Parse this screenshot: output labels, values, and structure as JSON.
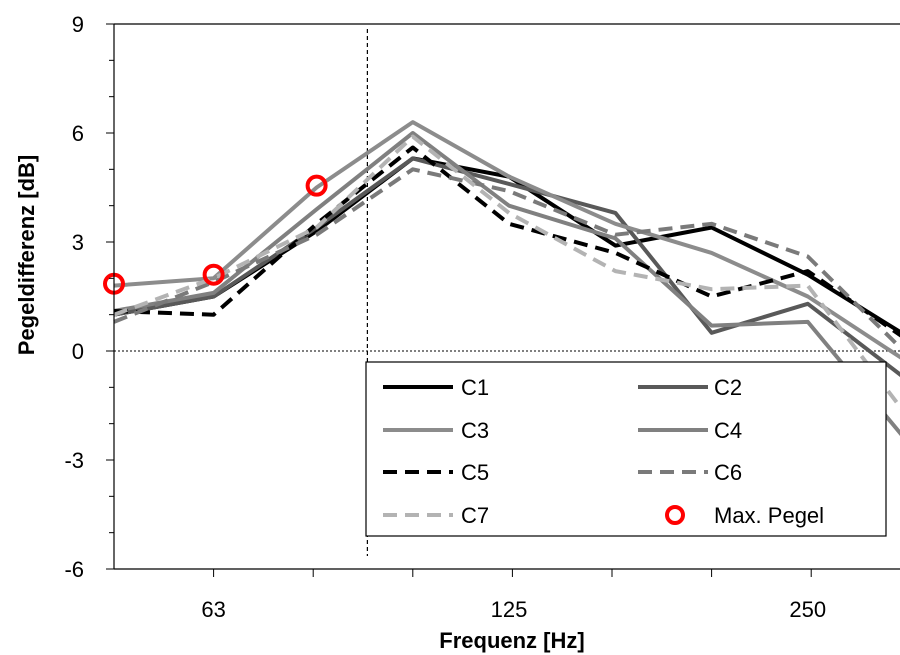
{
  "chart_data": {
    "type": "line",
    "title": "",
    "xlabel": "Frequenz [Hz]",
    "ylabel": "Pegeldifferenz [dB]",
    "x_scale": "log2 (third-octave bands)",
    "x_ticks": [
      {
        "value": 63,
        "label": "63"
      },
      {
        "value": 125,
        "label": "125"
      },
      {
        "value": 250,
        "label": "250"
      }
    ],
    "x_range": [
      50,
      315
    ],
    "x_bands": [
      50,
      63,
      80,
      100,
      125,
      160,
      200,
      250,
      315
    ],
    "marker_line_x": 90,
    "ylim": [
      -6,
      9
    ],
    "y_ticks": [
      {
        "value": 9,
        "label": "9"
      },
      {
        "value": 6,
        "label": "6"
      },
      {
        "value": 3,
        "label": "3"
      },
      {
        "value": 0,
        "label": "0"
      },
      {
        "value": -3,
        "label": "-3"
      },
      {
        "value": -6,
        "label": "-6"
      }
    ],
    "grid": false,
    "legend_position": "bottom-right",
    "series": [
      {
        "name": "C1",
        "color": "#000000",
        "dash": "solid",
        "x": [
          50,
          63,
          80,
          100,
          125,
          160,
          200,
          250,
          315
        ],
        "y": [
          1.0,
          1.5,
          3.3,
          5.3,
          4.8,
          2.9,
          3.4,
          2.1,
          0.4
        ]
      },
      {
        "name": "C2",
        "color": "#595959",
        "dash": "solid",
        "x": [
          50,
          63,
          80,
          100,
          125,
          160,
          200,
          250,
          315
        ],
        "y": [
          1.0,
          1.5,
          3.4,
          5.3,
          4.6,
          3.8,
          0.5,
          1.3,
          -0.8
        ]
      },
      {
        "name": "C3",
        "color": "#8c8c8c",
        "dash": "solid",
        "x": [
          50,
          63,
          80,
          100,
          125,
          160,
          200,
          250,
          315
        ],
        "y": [
          1.8,
          2.0,
          4.5,
          6.3,
          4.8,
          3.5,
          2.7,
          1.5,
          -0.3
        ]
      },
      {
        "name": "C4",
        "color": "#808080",
        "dash": "solid",
        "x": [
          50,
          63,
          80,
          100,
          125,
          160,
          200,
          250,
          315
        ],
        "y": [
          1.1,
          1.6,
          3.9,
          6.0,
          4.0,
          3.1,
          0.7,
          0.8,
          -2.5
        ]
      },
      {
        "name": "C5",
        "color": "#000000",
        "dash": "dashed",
        "x": [
          50,
          63,
          80,
          100,
          125,
          160,
          200,
          250,
          315
        ],
        "y": [
          1.1,
          1.0,
          3.5,
          5.6,
          3.5,
          2.7,
          1.5,
          2.2,
          0.3
        ]
      },
      {
        "name": "C6",
        "color": "#7a7a7a",
        "dash": "dashed",
        "x": [
          50,
          63,
          80,
          100,
          125,
          160,
          200,
          250,
          315
        ],
        "y": [
          0.8,
          1.9,
          3.2,
          5.0,
          4.4,
          3.2,
          3.5,
          2.6,
          -0.1
        ]
      },
      {
        "name": "C7",
        "color": "#b3b3b3",
        "dash": "dashed",
        "x": [
          50,
          63,
          80,
          100,
          125,
          160,
          200,
          250,
          315
        ],
        "y": [
          1.0,
          2.0,
          3.4,
          5.9,
          3.8,
          2.2,
          1.7,
          1.8,
          -1.8
        ]
      }
    ],
    "markers": {
      "name": "Max. Pegel",
      "color": "#ff0000",
      "x": [
        50,
        63,
        80
      ],
      "y": [
        1.85,
        2.1,
        4.55
      ]
    }
  }
}
